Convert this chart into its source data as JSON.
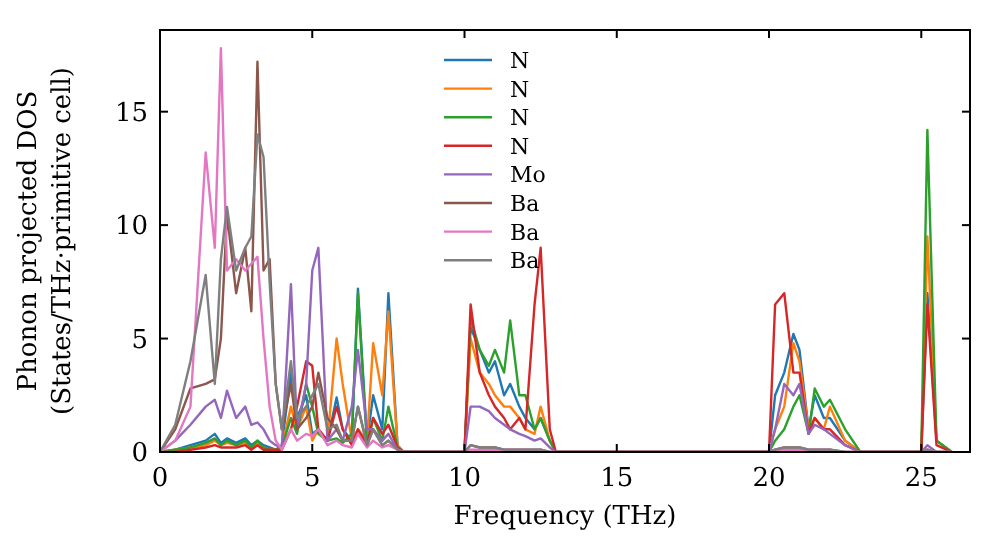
{
  "chart_data": {
    "type": "line",
    "xlabel": "Frequency (THz)",
    "ylabel": "Phonon projected DOS\n(States/THz·primitive cell)",
    "x": [
      0,
      0.5,
      1,
      1.5,
      1.8,
      2,
      2.2,
      2.5,
      2.8,
      3,
      3.2,
      3.4,
      3.6,
      3.8,
      4,
      4.3,
      4.5,
      4.8,
      5,
      5.2,
      5.5,
      5.8,
      6,
      6.3,
      6.5,
      6.8,
      7,
      7.3,
      7.5,
      7.8,
      8,
      10,
      10.2,
      10.5,
      10.8,
      11,
      11.3,
      11.5,
      11.8,
      12,
      12.3,
      12.5,
      12.8,
      13,
      20,
      20.2,
      20.5,
      20.8,
      21,
      21.3,
      21.5,
      21.8,
      22,
      22.5,
      23,
      25,
      25.2,
      25.5,
      26
    ],
    "series": [
      {
        "name": "N",
        "color": "#1f77b4",
        "values": [
          0,
          0.1,
          0.3,
          0.5,
          0.8,
          0.4,
          0.6,
          0.4,
          0.6,
          0.3,
          0.5,
          0.3,
          0.2,
          0.1,
          0.3,
          3.5,
          1.5,
          2.5,
          0.8,
          1,
          0.5,
          2.4,
          1,
          0.5,
          7.2,
          0.5,
          2.5,
          1,
          7,
          0.3,
          0,
          0,
          5.5,
          4.5,
          3.5,
          4,
          2.5,
          3,
          2,
          1.5,
          1,
          1.5,
          0.5,
          0,
          0,
          2.5,
          3.5,
          5.2,
          4.5,
          1,
          2.5,
          1.5,
          1.5,
          0.5,
          0,
          0,
          7,
          0.5,
          0
        ]
      },
      {
        "name": "N",
        "color": "#ff7f0e",
        "values": [
          0,
          0.1,
          0.2,
          0.3,
          0.5,
          0.3,
          0.4,
          0.3,
          0.4,
          0.2,
          0.4,
          0.2,
          0.1,
          0.1,
          0.2,
          2,
          1,
          2,
          0.5,
          1,
          0.5,
          5,
          3,
          0.5,
          1,
          0.5,
          4.8,
          2.5,
          6.2,
          0.3,
          0,
          0,
          5,
          3.5,
          3,
          2.5,
          2,
          2,
          1.5,
          1,
          0.8,
          2,
          0.5,
          0,
          0,
          1,
          2,
          4.8,
          4,
          1,
          1.5,
          1,
          2,
          0.5,
          0,
          0,
          9.5,
          0.5,
          0
        ]
      },
      {
        "name": "N",
        "color": "#2ca02c",
        "values": [
          0,
          0.1,
          0.2,
          0.4,
          0.6,
          0.3,
          0.5,
          0.3,
          0.5,
          0.2,
          0.5,
          0.2,
          0.1,
          0.1,
          0.2,
          1.5,
          0.8,
          3,
          2,
          0.8,
          0.5,
          0.6,
          0.4,
          0.8,
          7,
          0.3,
          1.5,
          0.5,
          2,
          0.2,
          0,
          0,
          5.9,
          4.5,
          3.8,
          4.5,
          3.5,
          5.8,
          2.5,
          2.5,
          1,
          1.5,
          0.5,
          0,
          0,
          0.5,
          1,
          2,
          2.5,
          0.8,
          2.8,
          2,
          2.3,
          1,
          0,
          0,
          14.2,
          0.5,
          0
        ]
      },
      {
        "name": "N",
        "color": "#d62728",
        "values": [
          0,
          0,
          0.1,
          0.2,
          0.3,
          0.2,
          0.2,
          0.2,
          0.3,
          0.1,
          0.3,
          0.1,
          0.1,
          0.1,
          0.1,
          1,
          2,
          4,
          3.8,
          1,
          0.5,
          2,
          1,
          0.3,
          1,
          0.3,
          1.5,
          0.8,
          1.2,
          0.2,
          0,
          0,
          6.5,
          3.5,
          2.5,
          2,
          1.5,
          1,
          1.5,
          1,
          6.5,
          9,
          1,
          0,
          0,
          6.5,
          7,
          3.5,
          3.5,
          0.8,
          1.5,
          1,
          1,
          0.3,
          0,
          0,
          6.5,
          0.3,
          0
        ]
      },
      {
        "name": "Mo",
        "color": "#9467bd",
        "values": [
          0,
          0.5,
          1.2,
          2,
          2.3,
          1.5,
          2.7,
          1.5,
          2,
          1.2,
          1.3,
          1,
          0.5,
          0.3,
          0.2,
          7.4,
          1,
          3,
          8,
          9,
          0.5,
          1,
          0.5,
          2,
          4.5,
          1,
          1,
          0.5,
          0.8,
          0.1,
          0,
          0,
          2,
          2,
          1.8,
          1.5,
          1.2,
          1,
          0.8,
          0.7,
          0.5,
          0.6,
          0.2,
          0,
          0,
          1,
          3,
          2.5,
          3,
          0.8,
          1.2,
          1,
          0.8,
          0.3,
          0,
          0,
          0.3,
          0,
          0
        ]
      },
      {
        "name": "Ba",
        "color": "#8c564b",
        "values": [
          0,
          1,
          2.8,
          3,
          3.2,
          5,
          10.5,
          7,
          9,
          6.2,
          17.2,
          8,
          8.5,
          3,
          1,
          3,
          1,
          1.5,
          2,
          3.5,
          1.5,
          1,
          0.5,
          0.5,
          2,
          0.3,
          1,
          0.3,
          0.5,
          0.1,
          0,
          0,
          0.3,
          0.2,
          0.2,
          0.2,
          0.1,
          0.1,
          0.1,
          0.1,
          0.1,
          0.1,
          0,
          0,
          0,
          0.1,
          0.2,
          0.2,
          0.2,
          0.1,
          0.1,
          0.1,
          0.1,
          0,
          0,
          0,
          0.1,
          0,
          0
        ]
      },
      {
        "name": "Ba",
        "color": "#e377c2",
        "values": [
          0,
          0.5,
          2,
          13.2,
          9,
          17.8,
          8,
          8.5,
          8,
          8.3,
          8.6,
          5,
          2,
          0.5,
          0.1,
          1,
          0.5,
          0.8,
          0.7,
          1,
          0.3,
          0.5,
          0.3,
          0.2,
          0.8,
          0.2,
          0.5,
          0.2,
          0.3,
          0.1,
          0,
          0,
          0.1,
          0.1,
          0.1,
          0.1,
          0.1,
          0.1,
          0.1,
          0.1,
          0.1,
          0.1,
          0,
          0,
          0,
          0.1,
          0.1,
          0.1,
          0.1,
          0.1,
          0.1,
          0.1,
          0.1,
          0,
          0,
          0,
          0.1,
          0,
          0
        ]
      },
      {
        "name": "Ba",
        "color": "#7f7f7f",
        "values": [
          0,
          1.2,
          4,
          7.8,
          3,
          8.5,
          10.8,
          8,
          9,
          9.5,
          14,
          13,
          7.5,
          3,
          1,
          4,
          1.5,
          2,
          2.5,
          3,
          1,
          1.2,
          0.5,
          0.5,
          2,
          0.3,
          1,
          0.3,
          0.5,
          0.1,
          0,
          0,
          0.3,
          0.2,
          0.2,
          0.2,
          0.1,
          0.1,
          0.1,
          0.1,
          0.1,
          0.1,
          0,
          0,
          0,
          0.1,
          0.2,
          0.2,
          0.2,
          0.1,
          0.1,
          0.1,
          0.1,
          0,
          0,
          0,
          0.1,
          0,
          0
        ]
      }
    ],
    "xlim": [
      0,
      26.6
    ],
    "ylim": [
      0,
      18.6
    ],
    "xticks": [
      0,
      5,
      10,
      15,
      20,
      25
    ],
    "yticks": [
      0,
      5,
      10,
      15
    ],
    "grid": false,
    "legend": "top",
    "marker": "none",
    "line_style": "solid"
  }
}
